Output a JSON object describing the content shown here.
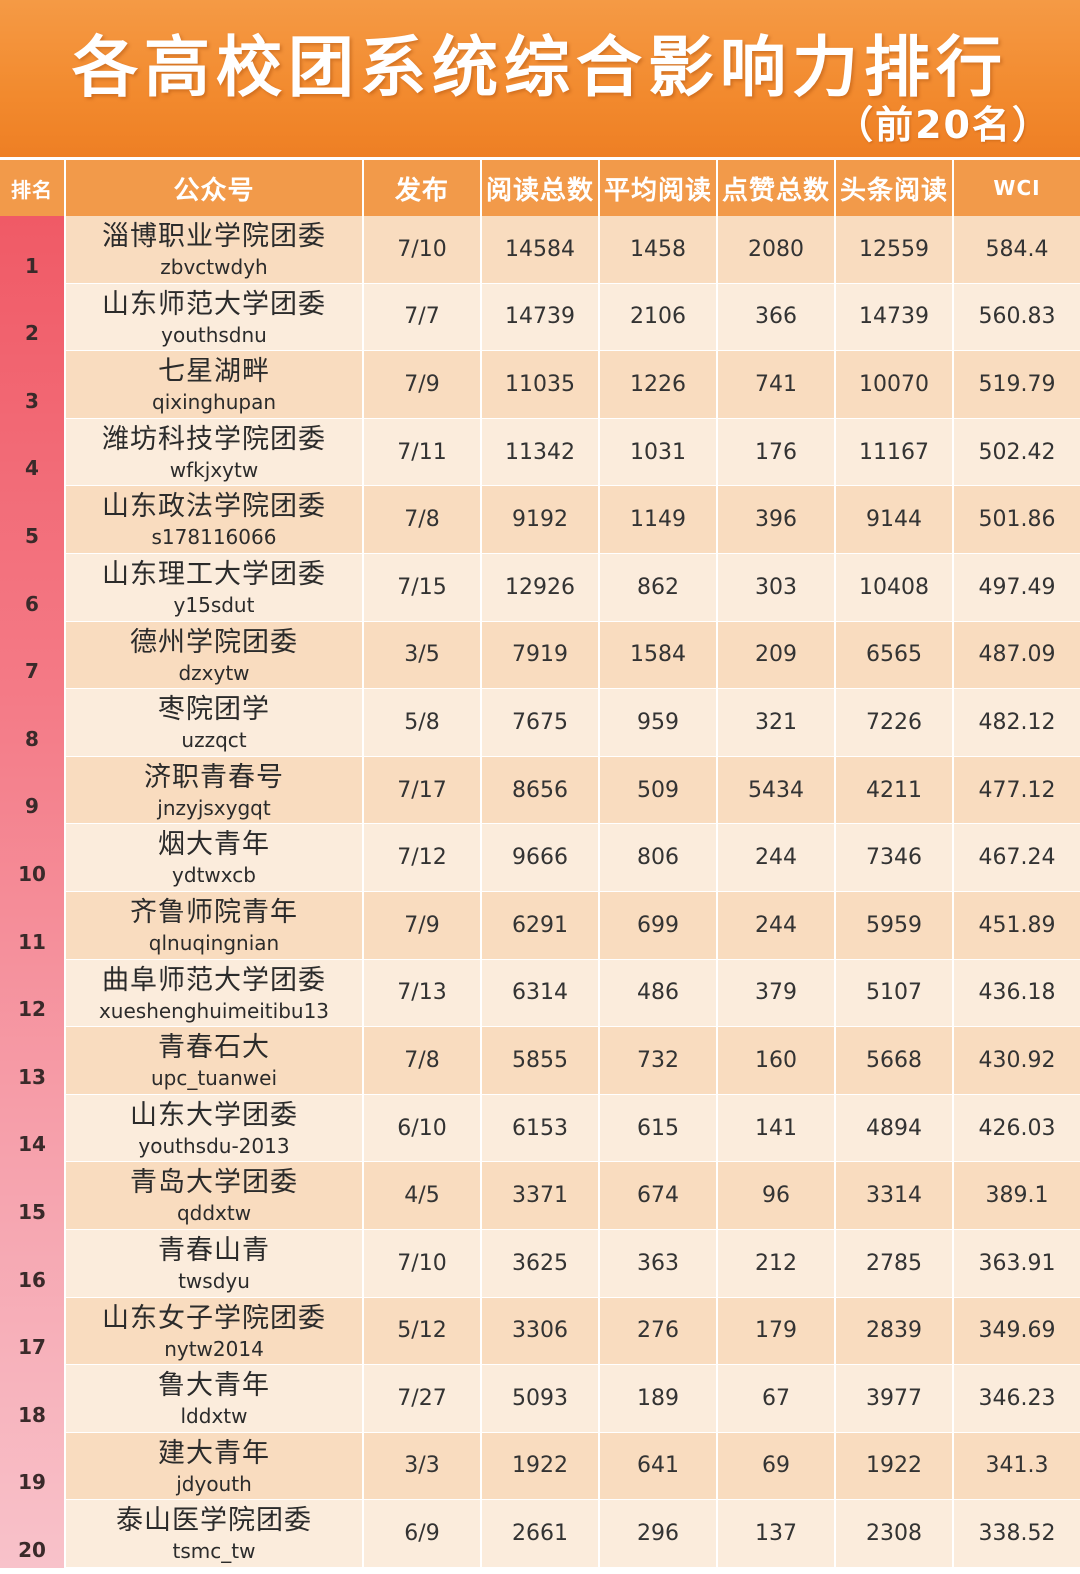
{
  "title": "各高校团系统综合影响力排行",
  "subtitle": "（前20名）",
  "headers": [
    "排名",
    "公众号",
    "发布",
    "阅读总数",
    "平均阅读",
    "点赞总数",
    "头条阅读",
    "WCI"
  ],
  "rows": [
    {
      "rank": "1",
      "name": "淄博职业学院团委",
      "id": "zbvctwdyh",
      "pub": "7/10",
      "total_read": "14584",
      "avg_read": "1458",
      "likes": "2080",
      "headline_read": "12559",
      "wci": "584.4"
    },
    {
      "rank": "2",
      "name": "山东师范大学团委",
      "id": "youthsdnu",
      "pub": "7/7",
      "total_read": "14739",
      "avg_read": "2106",
      "likes": "366",
      "headline_read": "14739",
      "wci": "560.83"
    },
    {
      "rank": "3",
      "name": "七星湖畔",
      "id": "qixinghupan",
      "pub": "7/9",
      "total_read": "11035",
      "avg_read": "1226",
      "likes": "741",
      "headline_read": "10070",
      "wci": "519.79"
    },
    {
      "rank": "4",
      "name": "潍坊科技学院团委",
      "id": "wfkjxytw",
      "pub": "7/11",
      "total_read": "11342",
      "avg_read": "1031",
      "likes": "176",
      "headline_read": "11167",
      "wci": "502.42"
    },
    {
      "rank": "5",
      "name": "山东政法学院团委",
      "id": "s178116066",
      "pub": "7/8",
      "total_read": "9192",
      "avg_read": "1149",
      "likes": "396",
      "headline_read": "9144",
      "wci": "501.86"
    },
    {
      "rank": "6",
      "name": "山东理工大学团委",
      "id": "y15sdut",
      "pub": "7/15",
      "total_read": "12926",
      "avg_read": "862",
      "likes": "303",
      "headline_read": "10408",
      "wci": "497.49"
    },
    {
      "rank": "7",
      "name": "德州学院团委",
      "id": "dzxytw",
      "pub": "3/5",
      "total_read": "7919",
      "avg_read": "1584",
      "likes": "209",
      "headline_read": "6565",
      "wci": "487.09"
    },
    {
      "rank": "8",
      "name": "枣院团学",
      "id": "uzzqct",
      "pub": "5/8",
      "total_read": "7675",
      "avg_read": "959",
      "likes": "321",
      "headline_read": "7226",
      "wci": "482.12"
    },
    {
      "rank": "9",
      "name": "济职青春号",
      "id": "jnzyjsxygqt",
      "pub": "7/17",
      "total_read": "8656",
      "avg_read": "509",
      "likes": "5434",
      "headline_read": "4211",
      "wci": "477.12"
    },
    {
      "rank": "10",
      "name": "烟大青年",
      "id": "ydtwxcb",
      "pub": "7/12",
      "total_read": "9666",
      "avg_read": "806",
      "likes": "244",
      "headline_read": "7346",
      "wci": "467.24"
    },
    {
      "rank": "11",
      "name": "齐鲁师院青年",
      "id": "qlnuqingnian",
      "pub": "7/9",
      "total_read": "6291",
      "avg_read": "699",
      "likes": "244",
      "headline_read": "5959",
      "wci": "451.89"
    },
    {
      "rank": "12",
      "name": "曲阜师范大学团委",
      "id": "xueshenghuimeitibu13",
      "pub": "7/13",
      "total_read": "6314",
      "avg_read": "486",
      "likes": "379",
      "headline_read": "5107",
      "wci": "436.18"
    },
    {
      "rank": "13",
      "name": "青春石大",
      "id": "upc_tuanwei",
      "pub": "7/8",
      "total_read": "5855",
      "avg_read": "732",
      "likes": "160",
      "headline_read": "5668",
      "wci": "430.92"
    },
    {
      "rank": "14",
      "name": "山东大学团委",
      "id": "youthsdu-2013",
      "pub": "6/10",
      "total_read": "6153",
      "avg_read": "615",
      "likes": "141",
      "headline_read": "4894",
      "wci": "426.03"
    },
    {
      "rank": "15",
      "name": "青岛大学团委",
      "id": "qddxtw",
      "pub": "4/5",
      "total_read": "3371",
      "avg_read": "674",
      "likes": "96",
      "headline_read": "3314",
      "wci": "389.1"
    },
    {
      "rank": "16",
      "name": "青春山青",
      "id": "twsdyu",
      "pub": "7/10",
      "total_read": "3625",
      "avg_read": "363",
      "likes": "212",
      "headline_read": "2785",
      "wci": "363.91"
    },
    {
      "rank": "17",
      "name": "山东女子学院团委",
      "id": "nytw2014",
      "pub": "5/12",
      "total_read": "3306",
      "avg_read": "276",
      "likes": "179",
      "headline_read": "2839",
      "wci": "349.69"
    },
    {
      "rank": "18",
      "name": "鲁大青年",
      "id": "lddxtw",
      "pub": "7/27",
      "total_read": "5093",
      "avg_read": "189",
      "likes": "67",
      "headline_read": "3977",
      "wci": "346.23"
    },
    {
      "rank": "19",
      "name": "建大青年",
      "id": "jdyouth",
      "pub": "3/3",
      "total_read": "1922",
      "avg_read": "641",
      "likes": "69",
      "headline_read": "1922",
      "wci": "341.3"
    },
    {
      "rank": "20",
      "name": "泰山医学院团委",
      "id": "tsmc_tw",
      "pub": "6/9",
      "total_read": "2661",
      "avg_read": "296",
      "likes": "137",
      "headline_read": "2308",
      "wci": "338.52"
    }
  ],
  "colors": {
    "banner": "#f28a2e",
    "header": "#f29a4a",
    "row_odd": "#f9dcbf",
    "row_even": "#fbecdc",
    "rank_bar_top": "#f05a66",
    "rank_bar_bottom": "#f8c2ca"
  }
}
